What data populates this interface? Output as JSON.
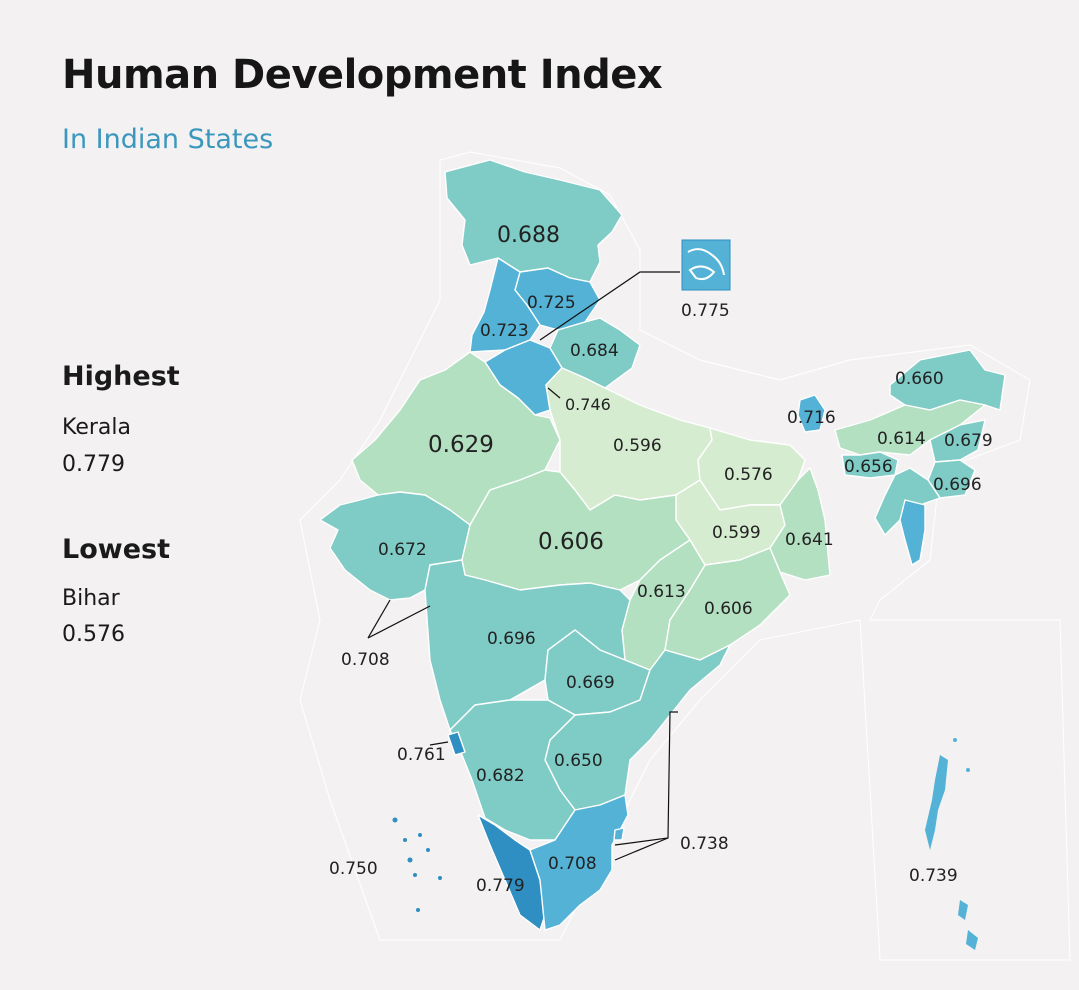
{
  "header": {
    "title": "Human Development Index",
    "subtitle": "In Indian States"
  },
  "highest": {
    "heading": "Highest",
    "state": "Kerala",
    "value": "0.779"
  },
  "lowest": {
    "heading": "Lowest",
    "state": "Bihar",
    "value": "0.576"
  },
  "colors": {
    "lightest": "#d6ecd0",
    "light": "#b4e0c2",
    "medium": "#7fcbc6",
    "dark": "#53b2d6",
    "darkest": "#2f8ec2",
    "subtitle": "#3a97bd"
  },
  "region_values": {
    "jammu_kashmir": "0.688",
    "himachal": "0.725",
    "punjab": "0.723",
    "chandigarh_inset": "0.775",
    "uttarakhand": "0.684",
    "haryana": "0.746",
    "rajasthan": "0.629",
    "uttar_pradesh": "0.596",
    "bihar": "0.576",
    "sikkim": "0.716",
    "arunachal": "0.660",
    "assam": "0.614",
    "nagaland": "0.679",
    "meghalaya": "0.656",
    "manipur": "0.696",
    "jharkhand": "0.599",
    "west_bengal": "0.641",
    "gujarat": "0.672",
    "madhya_pradesh": "0.606",
    "chhattisgarh": "0.613",
    "odisha": "0.606",
    "dadra_daman": "0.708",
    "maharashtra": "0.696",
    "telangana": "0.669",
    "goa": "0.761",
    "karnataka": "0.682",
    "andhra": "0.650",
    "puducherry": "0.738",
    "lakshadweep": "0.750",
    "kerala": "0.779",
    "tamil_nadu": "0.708",
    "andaman": "0.739"
  }
}
